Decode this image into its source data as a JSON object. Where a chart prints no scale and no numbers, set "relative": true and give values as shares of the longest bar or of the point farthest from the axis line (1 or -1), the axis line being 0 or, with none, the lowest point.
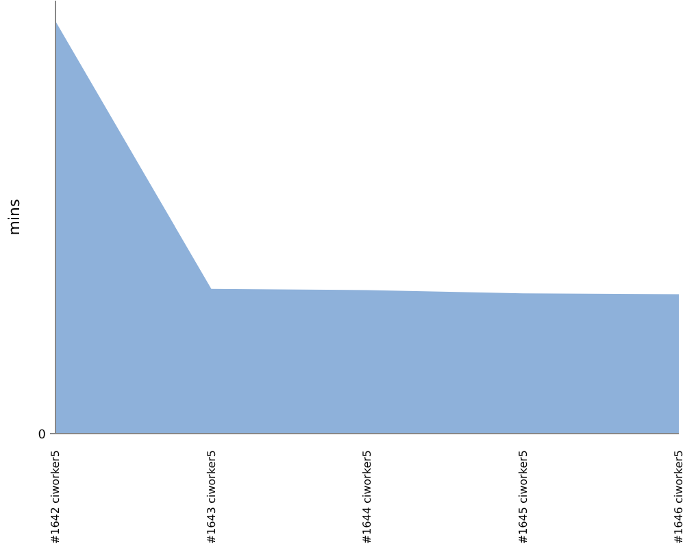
{
  "chart_data": {
    "type": "area",
    "ylabel": "mins",
    "categories": [
      "#1642 ciworker5",
      "#1643 ciworker5",
      "#1644 ciworker5",
      "#1645 ciworker5",
      "#1646 ciworker5"
    ],
    "values": [
      1,
      0.351,
      0.348,
      0.34,
      0.338
    ],
    "color": "#8eb1da",
    "relative": true,
    "annotations": [
      "0"
    ]
  }
}
